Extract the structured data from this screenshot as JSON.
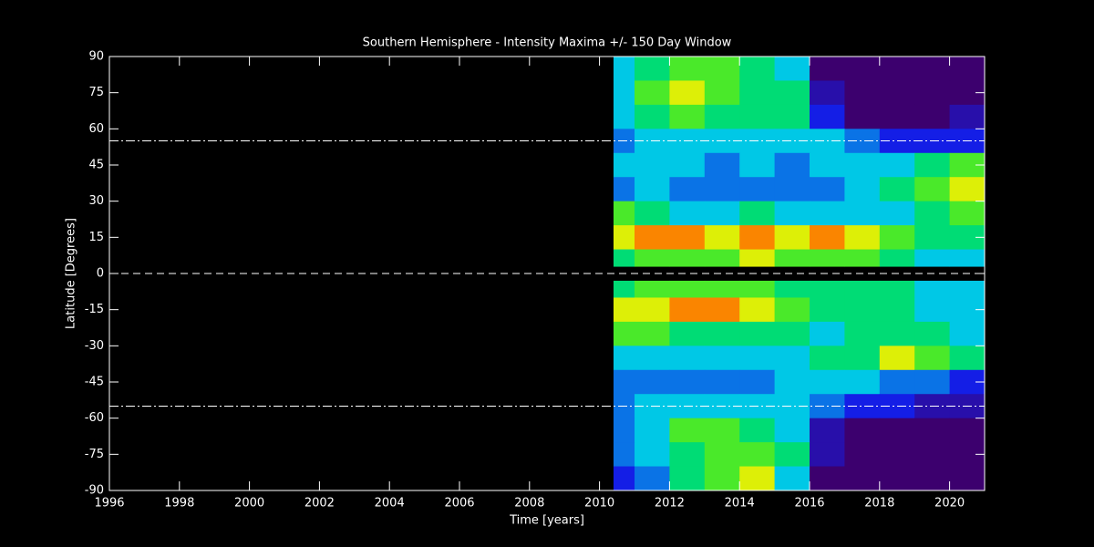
{
  "chart_data": {
    "type": "heatmap",
    "title": "Southern Hemisphere - Intensity Maxima +/- 150 Day Window",
    "xlabel": "Time [years]",
    "ylabel": "Latitude [Degrees]",
    "xlim": [
      1996,
      2021
    ],
    "ylim": [
      -90,
      90
    ],
    "xticks": [
      1996,
      1998,
      2000,
      2002,
      2004,
      2006,
      2008,
      2010,
      2012,
      2014,
      2016,
      2018,
      2020
    ],
    "yticks": [
      -90,
      -75,
      -60,
      -45,
      -30,
      -15,
      0,
      15,
      30,
      45,
      60,
      75,
      90
    ],
    "x_edges": [
      2010.4,
      2011,
      2012,
      2013,
      2014,
      2015,
      2016,
      2017,
      2018,
      2019,
      2020,
      2021
    ],
    "y_edges": [
      90,
      80,
      70,
      60,
      50,
      40,
      30,
      20,
      10,
      3,
      -3,
      -10,
      -20,
      -30,
      -40,
      -50,
      -60,
      -70,
      -80,
      -90
    ],
    "z": [
      [
        5,
        6,
        7,
        7,
        6,
        5,
        1,
        1,
        1,
        1,
        1
      ],
      [
        5,
        7,
        8,
        7,
        6,
        6,
        2,
        1,
        1,
        1,
        1
      ],
      [
        5,
        6,
        7,
        6,
        6,
        6,
        3,
        1,
        1,
        1,
        2
      ],
      [
        4,
        5,
        5,
        5,
        5,
        5,
        5,
        4,
        3,
        3,
        3
      ],
      [
        5,
        5,
        5,
        4,
        5,
        4,
        5,
        5,
        5,
        6,
        7
      ],
      [
        4,
        5,
        4,
        4,
        4,
        4,
        4,
        5,
        6,
        7,
        8
      ],
      [
        7,
        6,
        5,
        5,
        6,
        5,
        5,
        5,
        5,
        6,
        7
      ],
      [
        8,
        9,
        9,
        8,
        9,
        8,
        9,
        8,
        7,
        6,
        6
      ],
      [
        6,
        7,
        7,
        7,
        8,
        7,
        7,
        7,
        6,
        5,
        5
      ],
      null,
      [
        6,
        7,
        7,
        7,
        7,
        6,
        6,
        6,
        6,
        5,
        5
      ],
      [
        8,
        8,
        9,
        9,
        8,
        7,
        6,
        6,
        6,
        5,
        5
      ],
      [
        7,
        7,
        6,
        6,
        6,
        6,
        5,
        6,
        6,
        6,
        5
      ],
      [
        5,
        5,
        5,
        5,
        5,
        5,
        6,
        6,
        8,
        7,
        6
      ],
      [
        4,
        4,
        4,
        4,
        4,
        5,
        5,
        5,
        4,
        4,
        3
      ],
      [
        4,
        5,
        5,
        5,
        5,
        5,
        4,
        3,
        3,
        2,
        2
      ],
      [
        4,
        5,
        7,
        7,
        6,
        5,
        2,
        1,
        1,
        1,
        1
      ],
      [
        4,
        5,
        6,
        7,
        7,
        6,
        2,
        1,
        1,
        1,
        1
      ],
      [
        3,
        4,
        6,
        7,
        8,
        5,
        1,
        1,
        1,
        1,
        1
      ]
    ],
    "zlim": [
      0,
      10
    ],
    "reference_lines": [
      55,
      0,
      -55
    ]
  }
}
